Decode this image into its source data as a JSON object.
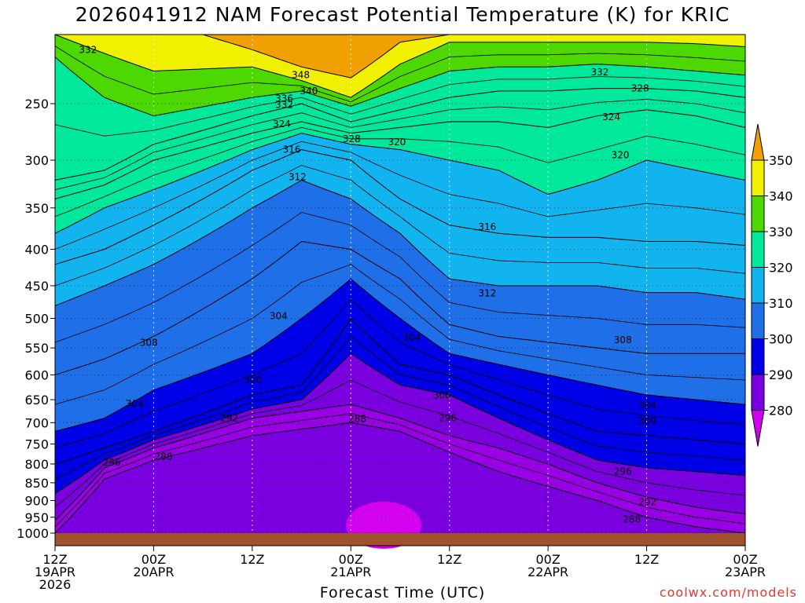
{
  "title": "2026041912 NAM Forecast Potential Temperature (K) for KRIC",
  "xlabel": "Forecast Time (UTC)",
  "credit": "coolwx.com/models",
  "colors": {
    "bands": [
      "#d400f0",
      "#9a00e6",
      "#7a00e0",
      "#0000e8",
      "#1e6fe8",
      "#12b4f0",
      "#00e89c",
      "#4cd800",
      "#f0f000",
      "#f0a000"
    ],
    "ground": "#a0522d"
  },
  "chart_data": {
    "type": "contour",
    "title": "2026041912 NAM Forecast Potential Temperature (K) for KRIC",
    "xlabel": "Forecast Time (UTC)",
    "ylabel": "",
    "x_range_hours": [
      0,
      84
    ],
    "y_range_hPa": [
      1000,
      200
    ],
    "x_ticks": [
      {
        "hour": 0,
        "lines": [
          "12Z",
          "19APR",
          "2026"
        ]
      },
      {
        "hour": 12,
        "lines": [
          "00Z",
          "20APR"
        ]
      },
      {
        "hour": 24,
        "lines": [
          "12Z"
        ]
      },
      {
        "hour": 36,
        "lines": [
          "00Z",
          "21APR"
        ]
      },
      {
        "hour": 48,
        "lines": [
          "12Z"
        ]
      },
      {
        "hour": 60,
        "lines": [
          "00Z",
          "22APR"
        ]
      },
      {
        "hour": 72,
        "lines": [
          "12Z"
        ]
      },
      {
        "hour": 84,
        "lines": [
          "00Z",
          "23APR"
        ]
      }
    ],
    "y_ticks": [
      "1000",
      "950",
      "900",
      "850",
      "800",
      "750",
      "700",
      "650",
      "600",
      "550",
      "500",
      "450",
      "400",
      "350",
      "300",
      "250"
    ],
    "colorbar": {
      "labels": [
        "280",
        "290",
        "300",
        "310",
        "320",
        "330",
        "340",
        "350"
      ]
    },
    "isentropes_K": [
      {
        "theta": 288,
        "points": [
          [
            0,
            1000
          ],
          [
            6,
            840
          ],
          [
            12,
            790
          ],
          [
            24,
            730
          ],
          [
            30,
            715
          ],
          [
            36,
            700
          ],
          [
            42,
            720
          ],
          [
            48,
            770
          ],
          [
            54,
            820
          ],
          [
            60,
            860
          ],
          [
            66,
            900
          ],
          [
            72,
            950
          ],
          [
            78,
            980
          ],
          [
            84,
            1000
          ]
        ]
      },
      {
        "theta": 292,
        "points": [
          [
            0,
            960
          ],
          [
            6,
            810
          ],
          [
            12,
            760
          ],
          [
            24,
            690
          ],
          [
            30,
            675
          ],
          [
            36,
            660
          ],
          [
            42,
            690
          ],
          [
            48,
            730
          ],
          [
            54,
            760
          ],
          [
            60,
            800
          ],
          [
            66,
            850
          ],
          [
            72,
            890
          ],
          [
            78,
            920
          ],
          [
            84,
            940
          ]
        ]
      },
      {
        "theta": 296,
        "points": [
          [
            0,
            880
          ],
          [
            6,
            790
          ],
          [
            12,
            740
          ],
          [
            24,
            670
          ],
          [
            30,
            650
          ],
          [
            36,
            560
          ],
          [
            42,
            620
          ],
          [
            48,
            640
          ],
          [
            54,
            690
          ],
          [
            60,
            740
          ],
          [
            66,
            790
          ],
          [
            72,
            810
          ],
          [
            78,
            820
          ],
          [
            84,
            830
          ]
        ]
      },
      {
        "theta": 300,
        "points": [
          [
            0,
            800
          ],
          [
            6,
            760
          ],
          [
            12,
            720
          ],
          [
            24,
            640
          ],
          [
            30,
            620
          ],
          [
            36,
            500
          ],
          [
            42,
            580
          ],
          [
            48,
            600
          ],
          [
            54,
            640
          ],
          [
            60,
            680
          ],
          [
            66,
            720
          ],
          [
            72,
            730
          ],
          [
            78,
            740
          ],
          [
            84,
            750
          ]
        ]
      },
      {
        "theta": 304,
        "points": [
          [
            0,
            720
          ],
          [
            6,
            690
          ],
          [
            12,
            630
          ],
          [
            24,
            560
          ],
          [
            30,
            500
          ],
          [
            36,
            440
          ],
          [
            42,
            500
          ],
          [
            48,
            560
          ],
          [
            54,
            580
          ],
          [
            60,
            600
          ],
          [
            66,
            620
          ],
          [
            72,
            640
          ],
          [
            78,
            650
          ],
          [
            84,
            660
          ]
        ]
      },
      {
        "theta": 308,
        "points": [
          [
            0,
            600
          ],
          [
            6,
            570
          ],
          [
            12,
            530
          ],
          [
            24,
            440
          ],
          [
            30,
            390
          ],
          [
            36,
            400
          ],
          [
            42,
            440
          ],
          [
            48,
            510
          ],
          [
            54,
            530
          ],
          [
            60,
            540
          ],
          [
            66,
            550
          ],
          [
            72,
            560
          ],
          [
            78,
            560
          ],
          [
            84,
            560
          ]
        ]
      },
      {
        "theta": 312,
        "points": [
          [
            0,
            480
          ],
          [
            6,
            450
          ],
          [
            12,
            420
          ],
          [
            24,
            350
          ],
          [
            30,
            320
          ],
          [
            36,
            340
          ],
          [
            42,
            380
          ],
          [
            48,
            440
          ],
          [
            54,
            450
          ],
          [
            60,
            450
          ],
          [
            66,
            450
          ],
          [
            72,
            460
          ],
          [
            78,
            460
          ],
          [
            84,
            470
          ]
        ]
      },
      {
        "theta": 316,
        "points": [
          [
            0,
            420
          ],
          [
            6,
            400
          ],
          [
            12,
            370
          ],
          [
            24,
            310
          ],
          [
            30,
            290
          ],
          [
            36,
            300
          ],
          [
            42,
            340
          ],
          [
            48,
            370
          ],
          [
            54,
            380
          ],
          [
            60,
            385
          ],
          [
            66,
            385
          ],
          [
            72,
            390
          ],
          [
            78,
            390
          ],
          [
            84,
            395
          ]
        ]
      },
      {
        "theta": 320,
        "points": [
          [
            0,
            380
          ],
          [
            6,
            350
          ],
          [
            12,
            330
          ],
          [
            24,
            290
          ],
          [
            30,
            275
          ],
          [
            36,
            285
          ],
          [
            42,
            290
          ],
          [
            48,
            300
          ],
          [
            54,
            310
          ],
          [
            60,
            335
          ],
          [
            66,
            320
          ],
          [
            72,
            300
          ],
          [
            78,
            310
          ],
          [
            84,
            320
          ]
        ]
      },
      {
        "theta": 324,
        "points": [
          [
            0,
            340
          ],
          [
            6,
            325
          ],
          [
            12,
            300
          ],
          [
            24,
            275
          ],
          [
            30,
            265
          ],
          [
            36,
            275
          ],
          [
            42,
            270
          ],
          [
            48,
            265
          ],
          [
            54,
            265
          ],
          [
            60,
            270
          ],
          [
            66,
            260
          ],
          [
            72,
            255
          ],
          [
            78,
            260
          ],
          [
            84,
            270
          ]
        ]
      },
      {
        "theta": 328,
        "points": [
          [
            0,
            320
          ],
          [
            6,
            310
          ],
          [
            12,
            285
          ],
          [
            24,
            260
          ],
          [
            30,
            250
          ],
          [
            36,
            265
          ],
          [
            42,
            255
          ],
          [
            48,
            245
          ],
          [
            54,
            240
          ],
          [
            60,
            240
          ],
          [
            66,
            238
          ],
          [
            72,
            238
          ],
          [
            78,
            240
          ],
          [
            84,
            245
          ]
        ]
      },
      {
        "theta": 332,
        "points": [
          [
            0,
            215
          ],
          [
            6,
            245
          ],
          [
            12,
            260
          ],
          [
            24,
            245
          ],
          [
            30,
            240
          ],
          [
            36,
            252
          ],
          [
            42,
            238
          ],
          [
            48,
            225
          ],
          [
            54,
            222
          ],
          [
            60,
            222
          ],
          [
            66,
            220
          ],
          [
            72,
            222
          ],
          [
            78,
            225
          ],
          [
            84,
            228
          ]
        ]
      },
      {
        "theta": 340,
        "points": [
          [
            0,
            200
          ],
          [
            12,
            225
          ],
          [
            24,
            222
          ],
          [
            30,
            232
          ],
          [
            36,
            245
          ],
          [
            42,
            220
          ],
          [
            48,
            205
          ],
          [
            54,
            205
          ],
          [
            60,
            205
          ],
          [
            66,
            205
          ],
          [
            72,
            205
          ],
          [
            78,
            206
          ],
          [
            84,
            208
          ]
        ]
      },
      {
        "theta": 348,
        "points": [
          [
            18,
            200
          ],
          [
            24,
            210
          ],
          [
            30,
            222
          ],
          [
            36,
            230
          ],
          [
            42,
            205
          ],
          [
            48,
            200
          ]
        ]
      }
    ],
    "contour_labels": [
      {
        "text": "332",
        "hour": 4.0,
        "p": 210
      },
      {
        "text": "348",
        "hour": 29.9,
        "p": 228
      },
      {
        "text": "340",
        "hour": 30.9,
        "p": 240
      },
      {
        "text": "336",
        "hour": 27.9,
        "p": 246
      },
      {
        "text": "332",
        "hour": 27.9,
        "p": 251
      },
      {
        "text": "324",
        "hour": 27.6,
        "p": 267
      },
      {
        "text": "328",
        "hour": 36.1,
        "p": 280
      },
      {
        "text": "320",
        "hour": 41.6,
        "p": 283
      },
      {
        "text": "316",
        "hour": 28.8,
        "p": 290
      },
      {
        "text": "312",
        "hour": 29.5,
        "p": 317
      },
      {
        "text": "332",
        "hour": 66.3,
        "p": 226
      },
      {
        "text": "328",
        "hour": 71.2,
        "p": 238
      },
      {
        "text": "324",
        "hour": 67.7,
        "p": 261
      },
      {
        "text": "320",
        "hour": 68.8,
        "p": 295
      },
      {
        "text": "316",
        "hour": 52.6,
        "p": 372
      },
      {
        "text": "312",
        "hour": 52.6,
        "p": 461
      },
      {
        "text": "308",
        "hour": 11.4,
        "p": 541
      },
      {
        "text": "304",
        "hour": 27.2,
        "p": 496
      },
      {
        "text": "304",
        "hour": 43.4,
        "p": 532
      },
      {
        "text": "308",
        "hour": 69.1,
        "p": 536
      },
      {
        "text": "304",
        "hour": 72.1,
        "p": 662
      },
      {
        "text": "300",
        "hour": 24.1,
        "p": 610
      },
      {
        "text": "300",
        "hour": 47.1,
        "p": 641
      },
      {
        "text": "300",
        "hour": 72.1,
        "p": 697
      },
      {
        "text": "304",
        "hour": 9.7,
        "p": 659
      },
      {
        "text": "292",
        "hour": 21.2,
        "p": 690
      },
      {
        "text": "296",
        "hour": 47.8,
        "p": 690
      },
      {
        "text": "288",
        "hour": 36.8,
        "p": 692
      },
      {
        "text": "296",
        "hour": 6.9,
        "p": 796
      },
      {
        "text": "288",
        "hour": 13.2,
        "p": 781
      },
      {
        "text": "296",
        "hour": 69.1,
        "p": 820
      },
      {
        "text": "292",
        "hour": 72.1,
        "p": 905
      },
      {
        "text": "288",
        "hour": 70.2,
        "p": 957
      }
    ]
  }
}
